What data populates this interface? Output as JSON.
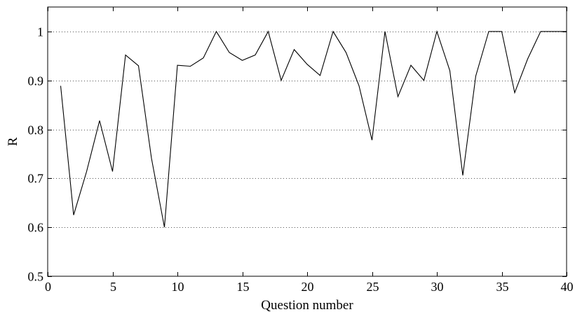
{
  "chart_data": {
    "type": "line",
    "title": "",
    "xlabel": "Question number",
    "ylabel": "R",
    "xlim": [
      0,
      40
    ],
    "ylim": [
      0.5,
      1.05
    ],
    "x_ticks": [
      0,
      5,
      10,
      15,
      20,
      25,
      30,
      35,
      40
    ],
    "x_tick_labels": [
      "0",
      "5",
      "10",
      "15",
      "20",
      "25",
      "30",
      "35",
      "40"
    ],
    "y_ticks": [
      0.5,
      0.6,
      0.7,
      0.8,
      0.9,
      1.0
    ],
    "y_tick_labels": [
      "0.5",
      "0.6",
      "0.7",
      "0.8",
      "0.9",
      "1"
    ],
    "grid": "horizontal dotted at y ticks",
    "colors": {
      "line": "#000000",
      "grid": "#555555",
      "axes": "#000000",
      "background": "#ffffff"
    },
    "series": [
      {
        "x": [
          1,
          2,
          3,
          4,
          5,
          6,
          7,
          8,
          9,
          10,
          11,
          12,
          13,
          14,
          15,
          16,
          17,
          18,
          19,
          20,
          21,
          22,
          23,
          24,
          25,
          26,
          27,
          28,
          29,
          30,
          31,
          32,
          33,
          34,
          35,
          36,
          37,
          38,
          39,
          40
        ],
        "values": [
          0.889,
          0.625,
          0.714,
          0.818,
          0.714,
          0.952,
          0.93,
          0.741,
          0.6,
          0.931,
          0.929,
          0.946,
          1.0,
          0.957,
          0.941,
          0.952,
          1.0,
          0.9,
          0.963,
          0.933,
          0.91,
          1.0,
          0.957,
          0.889,
          0.778,
          1.0,
          0.867,
          0.931,
          0.9,
          1.0,
          0.92,
          0.706,
          0.909,
          1.0,
          1.0,
          0.875,
          0.944,
          1.0,
          1.0,
          1.0
        ]
      }
    ]
  }
}
